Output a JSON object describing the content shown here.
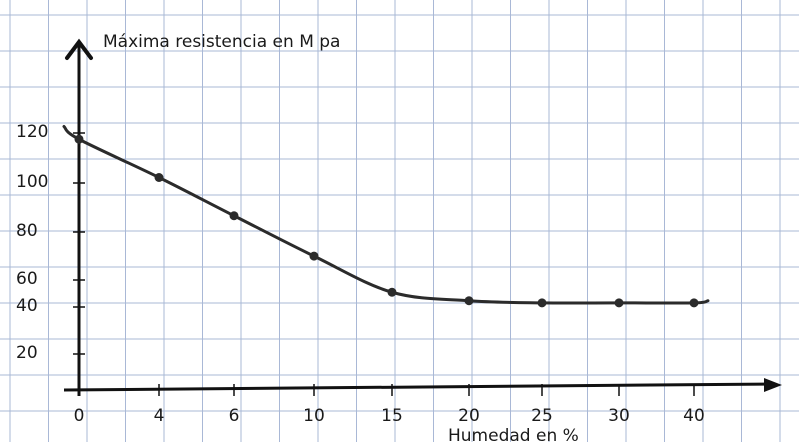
{
  "chart_data": {
    "type": "line",
    "title": "",
    "ylabel": "Máxima resistencia en M pa",
    "xlabel": "Humedad en %",
    "x_categories": [
      "0",
      "4",
      "6",
      "10",
      "15",
      "20",
      "25",
      "30",
      "40"
    ],
    "y_tick_labels": [
      "20",
      "40",
      "60",
      "80",
      "100",
      "120"
    ],
    "series": [
      {
        "values": [
          118,
          100,
          82,
          63,
          46,
          42,
          41,
          41,
          41
        ]
      }
    ],
    "line_extension": {
      "start_value": 124,
      "end_value": 42
    },
    "grid": true,
    "colors": {
      "line": "#2b2b2b",
      "grid": "#a9b8d6",
      "axis": "#111111",
      "background": "#ffffff"
    }
  }
}
